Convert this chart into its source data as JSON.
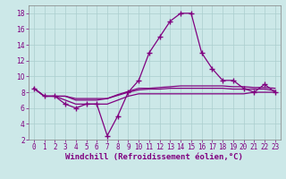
{
  "title": "",
  "xlabel": "Windchill (Refroidissement éolien,°C)",
  "x": [
    0,
    1,
    2,
    3,
    4,
    5,
    6,
    7,
    8,
    9,
    10,
    11,
    12,
    13,
    14,
    15,
    16,
    17,
    18,
    19,
    20,
    21,
    22,
    23
  ],
  "line1": [
    8.5,
    7.5,
    7.5,
    6.5,
    6.0,
    6.5,
    6.5,
    2.5,
    5.0,
    8.0,
    9.5,
    13.0,
    15.0,
    17.0,
    18.0,
    18.0,
    13.0,
    11.0,
    9.5,
    9.5,
    8.5,
    8.0,
    9.0,
    8.0
  ],
  "line2": [
    8.5,
    7.5,
    7.5,
    7.5,
    7.0,
    7.0,
    7.0,
    7.2,
    7.7,
    8.1,
    8.5,
    8.5,
    8.6,
    8.7,
    8.8,
    8.8,
    8.8,
    8.8,
    8.8,
    8.7,
    8.7,
    8.6,
    8.6,
    8.5
  ],
  "line3": [
    8.5,
    7.5,
    7.5,
    7.5,
    7.2,
    7.2,
    7.2,
    7.2,
    7.6,
    8.0,
    8.3,
    8.4,
    8.4,
    8.5,
    8.5,
    8.5,
    8.5,
    8.5,
    8.5,
    8.4,
    8.4,
    8.4,
    8.4,
    8.2
  ],
  "line4": [
    8.5,
    7.5,
    7.5,
    7.0,
    6.5,
    6.5,
    6.5,
    6.5,
    7.0,
    7.5,
    7.8,
    7.8,
    7.8,
    7.8,
    7.8,
    7.8,
    7.8,
    7.8,
    7.8,
    7.8,
    7.8,
    8.0,
    8.0,
    8.0
  ],
  "line_color": "#800080",
  "bg_color": "#cce8e8",
  "grid_color": "#aacece",
  "ylim": [
    2,
    19
  ],
  "yticks": [
    2,
    4,
    6,
    8,
    10,
    12,
    14,
    16,
    18
  ],
  "xticks": [
    0,
    1,
    2,
    3,
    4,
    5,
    6,
    7,
    8,
    9,
    10,
    11,
    12,
    13,
    14,
    15,
    16,
    17,
    18,
    19,
    20,
    21,
    22,
    23
  ],
  "tick_fontsize": 5.5,
  "xlabel_fontsize": 6.5
}
